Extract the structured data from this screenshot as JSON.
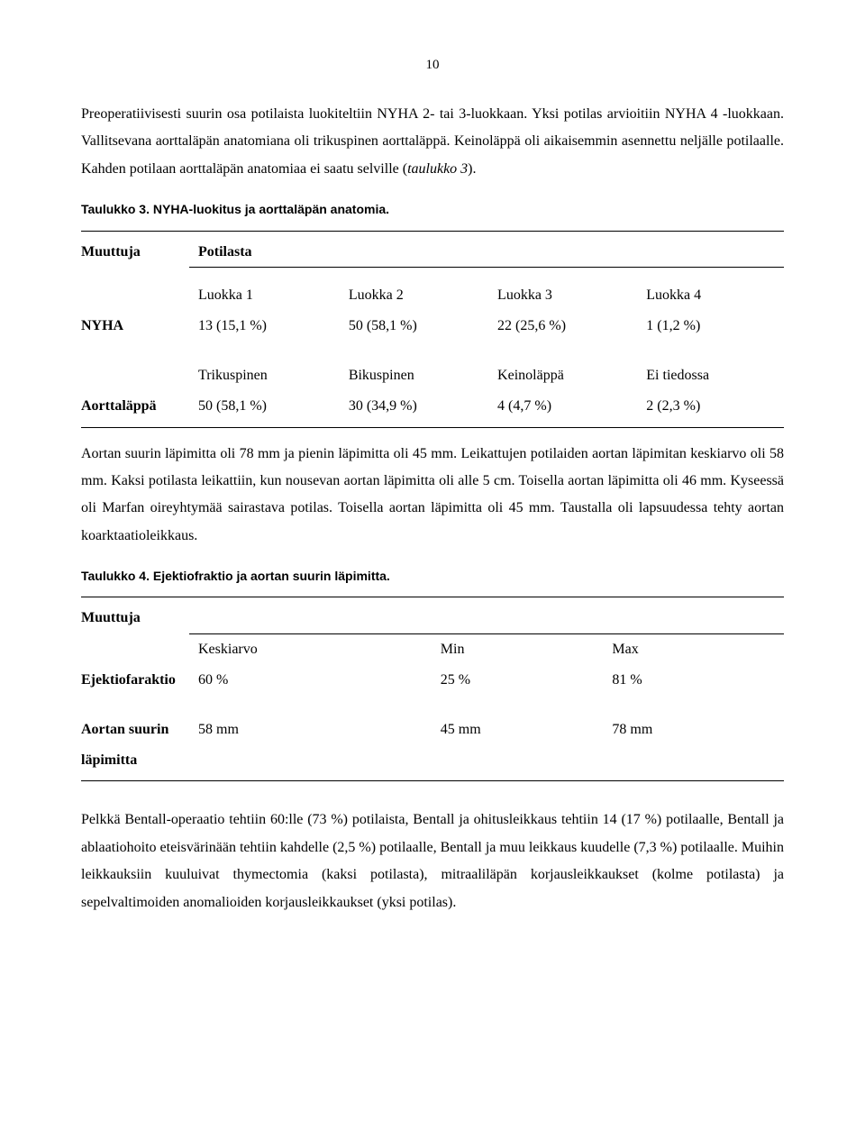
{
  "page_number": "10",
  "para1": "Preoperatiivisesti suurin osa potilaista luokiteltiin NYHA 2- tai 3-luokkaan. Yksi potilas arvioitiin NYHA 4 -luokkaan. Vallitsevana aorttaläpän anatomiana oli trikuspinen aorttaläppä. Keinoläppä oli aikaisemmin asennettu neljälle potilaalle. Kahden potilaan aorttaläpän anatomiaa ei saatu selville (",
  "para1_italic": "taulukko 3",
  "para1_tail": ").",
  "table3": {
    "caption": "Taulukko 3. NYHA-luokitus ja aorttaläpän anatomia.",
    "header_var": "Muuttuja",
    "header_pot": "Potilasta",
    "nyha_label": "NYHA",
    "nyha_cols_top": [
      "Luokka 1",
      "Luokka 2",
      "Luokka 3",
      "Luokka 4"
    ],
    "nyha_cols_bot": [
      "13 (15,1 %)",
      "50 (58,1 %)",
      "22 (25,6 %)",
      "1 (1,2 %)"
    ],
    "aortta_label": "Aorttaläppä",
    "aortta_cols_top": [
      "Trikuspinen",
      "Bikuspinen",
      "Keinoläppä",
      "Ei tiedossa"
    ],
    "aortta_cols_bot": [
      "50 (58,1 %)",
      "30 (34,9 %)",
      "4 (4,7 %)",
      "2 (2,3 %)"
    ]
  },
  "para2": "Aortan suurin läpimitta oli 78 mm ja pienin läpimitta oli 45 mm. Leikattujen potilaiden aortan läpimitan keskiarvo oli 58 mm. Kaksi potilasta leikattiin, kun nousevan aortan läpimitta oli alle 5 cm. Toisella aortan läpimitta oli 46 mm. Kyseessä oli Marfan oireyhtymää sairastava potilas. Toisella aortan läpimitta oli 45 mm. Taustalla oli lapsuudessa tehty aortan koarktaatioleikkaus.",
  "table4": {
    "caption": "Taulukko 4. Ejektiofraktio ja aortan suurin läpimitta.",
    "header_var": "Muuttuja",
    "cols": [
      "Keskiarvo",
      "Min",
      "Max"
    ],
    "row1_label": "Ejektiofaraktio",
    "row1_vals": [
      "60 %",
      "25 %",
      "81 %"
    ],
    "row2_label_a": "Aortan suurin",
    "row2_label_b": "läpimitta",
    "row2_vals": [
      "58 mm",
      "45 mm",
      "78 mm"
    ]
  },
  "para3": "Pelkkä Bentall-operaatio tehtiin 60:lle (73 %) potilaista, Bentall ja ohitusleikkaus tehtiin 14 (17 %) potilaalle, Bentall ja ablaatiohoito eteisvärinään tehtiin kahdelle (2,5 %) potilaalle, Bentall ja muu leikkaus kuudelle (7,3 %) potilaalle. Muihin leikkauksiin kuuluivat thymectomia (kaksi potilasta), mitraaliläpän korjausleikkaukset (kolme potilasta) ja sepelvaltimoiden anomalioiden korjausleikkaukset (yksi potilas)."
}
